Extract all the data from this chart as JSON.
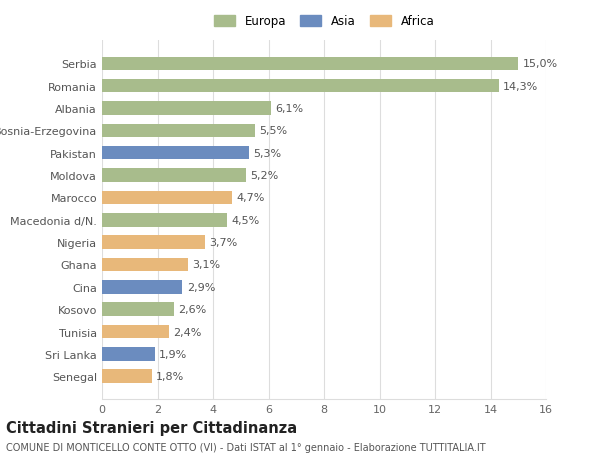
{
  "countries": [
    "Senegal",
    "Sri Lanka",
    "Tunisia",
    "Kosovo",
    "Cina",
    "Ghana",
    "Nigeria",
    "Macedonia d/N.",
    "Marocco",
    "Moldova",
    "Pakistan",
    "Bosnia-Erzegovina",
    "Albania",
    "Romania",
    "Serbia"
  ],
  "values": [
    1.8,
    1.9,
    2.4,
    2.6,
    2.9,
    3.1,
    3.7,
    4.5,
    4.7,
    5.2,
    5.3,
    5.5,
    6.1,
    14.3,
    15.0
  ],
  "labels": [
    "1,8%",
    "1,9%",
    "2,4%",
    "2,6%",
    "2,9%",
    "3,1%",
    "3,7%",
    "4,5%",
    "4,7%",
    "5,2%",
    "5,3%",
    "5,5%",
    "6,1%",
    "14,3%",
    "15,0%"
  ],
  "continents": [
    "Africa",
    "Asia",
    "Africa",
    "Europa",
    "Asia",
    "Africa",
    "Africa",
    "Europa",
    "Africa",
    "Europa",
    "Asia",
    "Europa",
    "Europa",
    "Europa",
    "Europa"
  ],
  "colors": {
    "Europa": "#a8bc8c",
    "Asia": "#6b8cbf",
    "Africa": "#e8b87a"
  },
  "xlim": [
    0,
    16
  ],
  "xticks": [
    0,
    2,
    4,
    6,
    8,
    10,
    12,
    14,
    16
  ],
  "title": "Cittadini Stranieri per Cittadinanza",
  "subtitle": "COMUNE DI MONTICELLO CONTE OTTO (VI) - Dati ISTAT al 1° gennaio - Elaborazione TUTTITALIA.IT",
  "background_color": "#ffffff",
  "grid_color": "#dddddd",
  "bar_height": 0.6,
  "label_fontsize": 8.0,
  "tick_fontsize": 8.0,
  "title_fontsize": 10.5,
  "subtitle_fontsize": 7.0,
  "legend_fontsize": 8.5
}
